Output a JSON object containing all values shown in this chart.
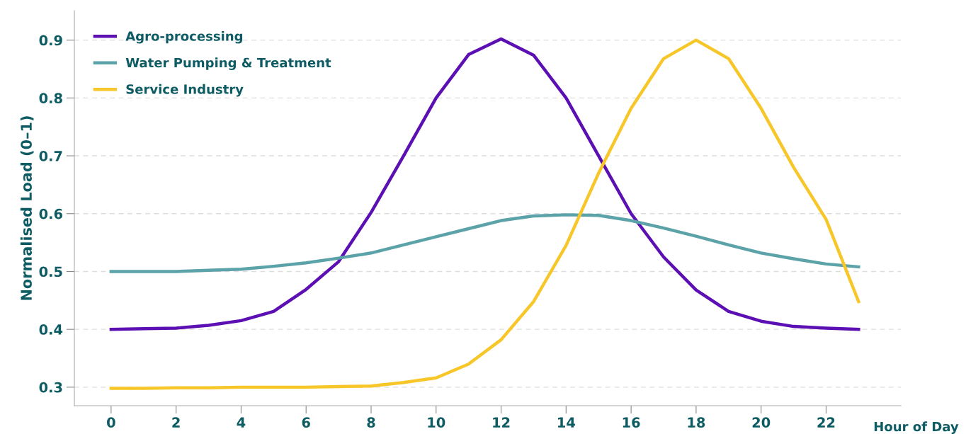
{
  "chart_data": {
    "type": "line",
    "xlabel": "Hour of Day",
    "ylabel": "Normalised Load (0–1)",
    "x": [
      0,
      1,
      2,
      3,
      4,
      5,
      6,
      7,
      8,
      9,
      10,
      11,
      12,
      13,
      14,
      15,
      16,
      17,
      18,
      19,
      20,
      21,
      22,
      23
    ],
    "series": [
      {
        "name": "Agro-processing",
        "color": "#5c0fb3",
        "values": [
          0.4,
          0.401,
          0.402,
          0.407,
          0.415,
          0.431,
          0.469,
          0.517,
          0.602,
          0.7,
          0.8,
          0.875,
          0.902,
          0.874,
          0.8,
          0.7,
          0.6,
          0.525,
          0.468,
          0.431,
          0.414,
          0.405,
          0.402,
          0.4
        ]
      },
      {
        "name": "Water Pumping & Treatment",
        "color": "#5ba3a8",
        "values": [
          0.5,
          0.5,
          0.5,
          0.502,
          0.504,
          0.509,
          0.515,
          0.523,
          0.532,
          0.546,
          0.56,
          0.574,
          0.588,
          0.596,
          0.598,
          0.597,
          0.588,
          0.575,
          0.561,
          0.546,
          0.532,
          0.522,
          0.513,
          0.508
        ]
      },
      {
        "name": "Service Industry",
        "color": "#f7c72a",
        "values": [
          0.298,
          0.298,
          0.299,
          0.299,
          0.3,
          0.3,
          0.3,
          0.301,
          0.302,
          0.308,
          0.316,
          0.34,
          0.382,
          0.448,
          0.545,
          0.67,
          0.782,
          0.868,
          0.9,
          0.868,
          0.782,
          0.68,
          0.59,
          0.448
        ]
      }
    ],
    "xlim": [
      -1.13,
      24.3
    ],
    "ylim": [
      0.268,
      0.951
    ],
    "xticks": [
      0,
      2,
      4,
      6,
      8,
      10,
      12,
      14,
      16,
      18,
      20,
      22
    ],
    "yticks": [
      0.3,
      0.4,
      0.5,
      0.6,
      0.7,
      0.8,
      0.9
    ],
    "grid": "y",
    "legend": "top left",
    "marker": "none",
    "line_style": "solid"
  }
}
